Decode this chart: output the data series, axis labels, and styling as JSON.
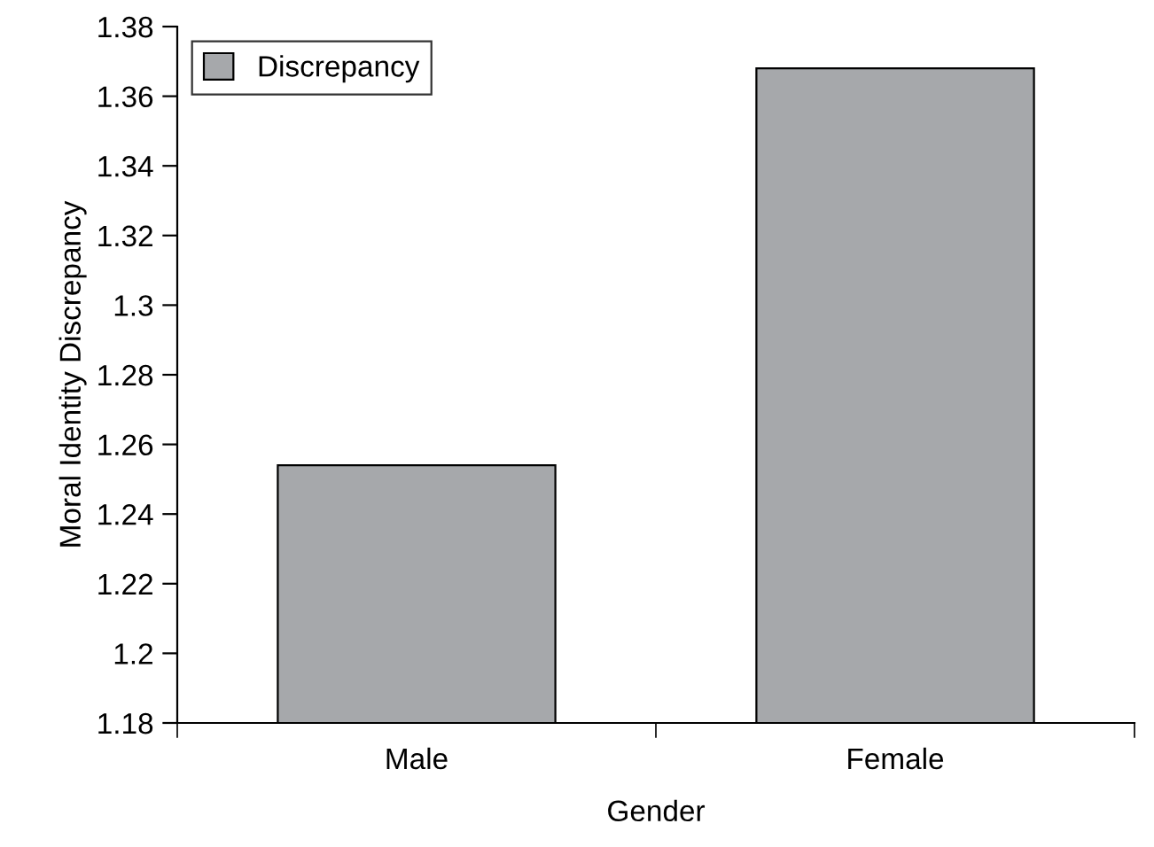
{
  "chart_data": {
    "type": "bar",
    "xlabel": "Gender",
    "ylabel": "Moral Identity Discrepancy",
    "categories": [
      "Male",
      "Female"
    ],
    "series": [
      {
        "name": "Discrepancy",
        "color": "#a6a8ab",
        "values": [
          1.254,
          1.368
        ]
      }
    ],
    "ylim": [
      1.18,
      1.38
    ],
    "yticks": [
      1.18,
      1.2,
      1.22,
      1.24,
      1.26,
      1.28,
      1.3,
      1.32,
      1.34,
      1.36,
      1.38
    ],
    "legend": "top left",
    "grid": false
  }
}
